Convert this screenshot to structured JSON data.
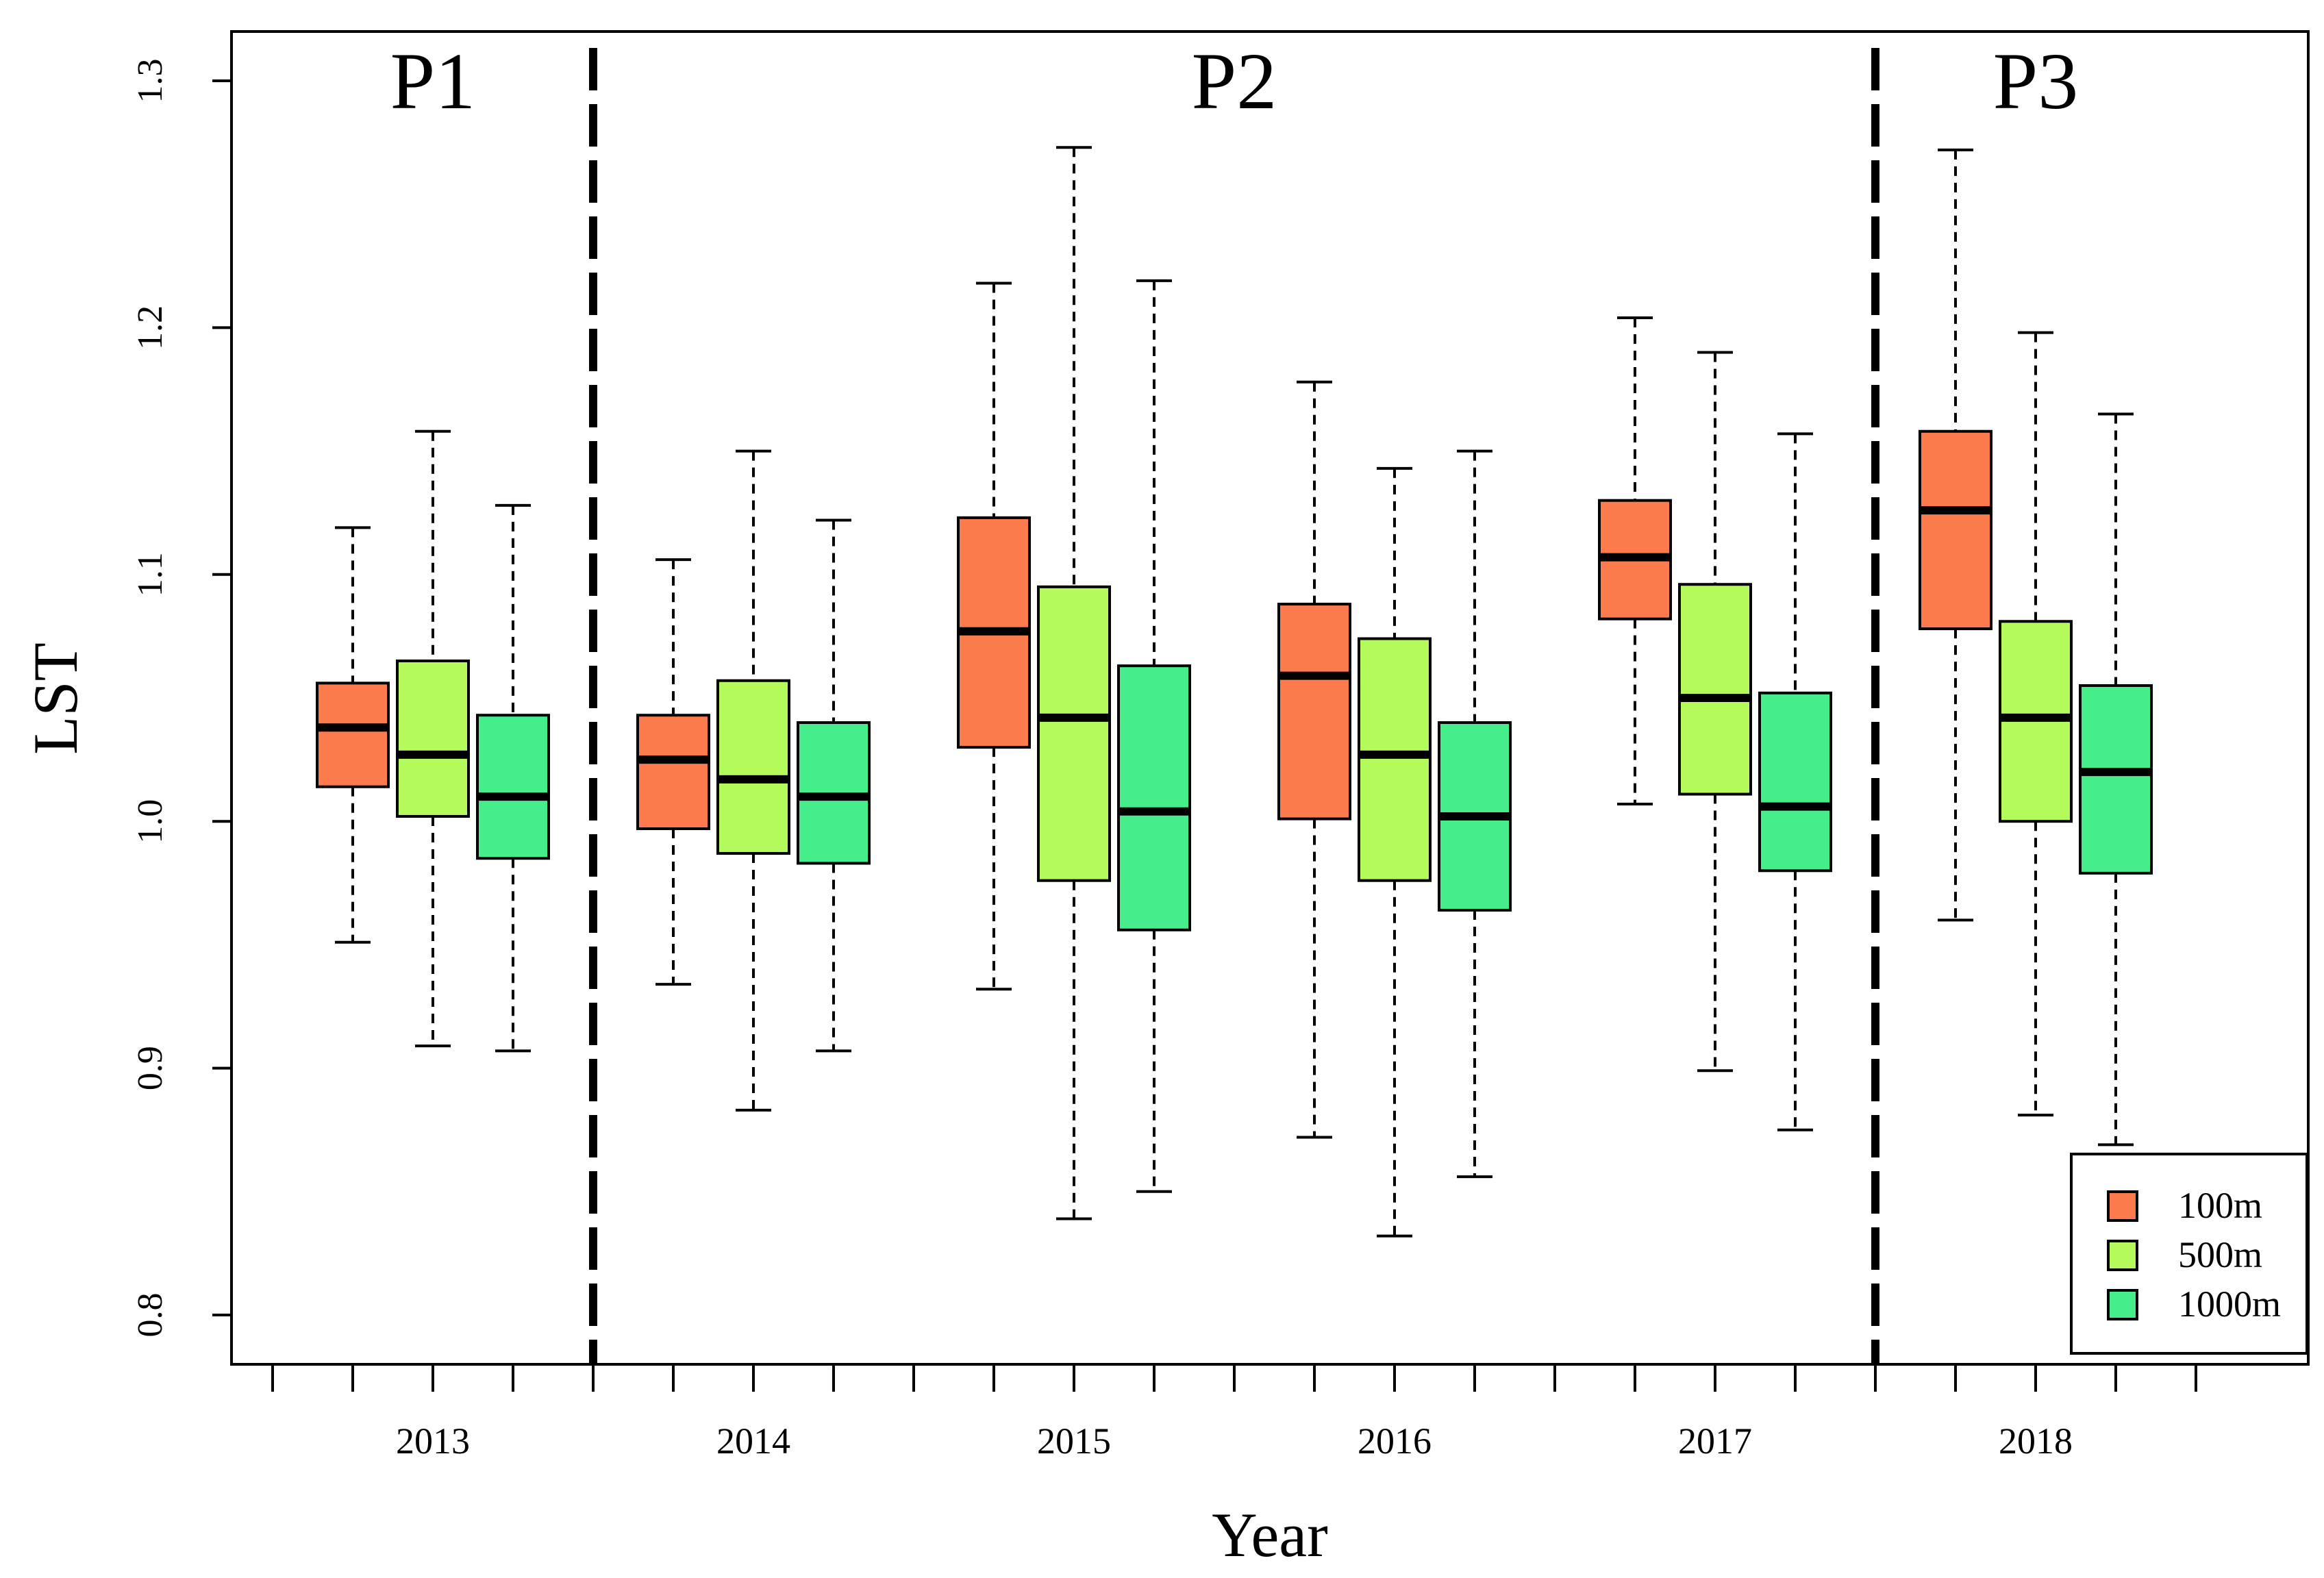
{
  "chart_data": {
    "type": "boxplot",
    "title": "",
    "xlabel": "Year",
    "ylabel": "LST",
    "ylim": [
      0.78,
      1.32
    ],
    "yticks": [
      0.8,
      0.9,
      1.0,
      1.1,
      1.2,
      1.3
    ],
    "ytick_labels": [
      "0.8",
      "0.9",
      "1.0",
      "1.1",
      "1.2",
      "1.3"
    ],
    "categories": [
      "2013",
      "2014",
      "2015",
      "2016",
      "2017",
      "2018"
    ],
    "series": [
      {
        "name": "100m",
        "color": "#FB7B4D",
        "boxes": [
          {
            "year": "2013",
            "lower_whisker": 0.951,
            "q1": 1.014,
            "median": 1.038,
            "q3": 1.056,
            "upper_whisker": 1.119
          },
          {
            "year": "2014",
            "lower_whisker": 0.934,
            "q1": 0.997,
            "median": 1.025,
            "q3": 1.043,
            "upper_whisker": 1.106
          },
          {
            "year": "2015",
            "lower_whisker": 0.932,
            "q1": 1.03,
            "median": 1.077,
            "q3": 1.123,
            "upper_whisker": 1.218
          },
          {
            "year": "2016",
            "lower_whisker": 0.872,
            "q1": 1.001,
            "median": 1.059,
            "q3": 1.088,
            "upper_whisker": 1.178
          },
          {
            "year": "2017",
            "lower_whisker": 1.007,
            "q1": 1.082,
            "median": 1.107,
            "q3": 1.13,
            "upper_whisker": 1.204
          },
          {
            "year": "2018",
            "lower_whisker": 0.96,
            "q1": 1.078,
            "median": 1.126,
            "q3": 1.158,
            "upper_whisker": 1.272
          }
        ]
      },
      {
        "name": "500m",
        "color": "#B4FA5A",
        "boxes": [
          {
            "year": "2013",
            "lower_whisker": 0.909,
            "q1": 1.002,
            "median": 1.027,
            "q3": 1.065,
            "upper_whisker": 1.158
          },
          {
            "year": "2014",
            "lower_whisker": 0.883,
            "q1": 0.987,
            "median": 1.017,
            "q3": 1.057,
            "upper_whisker": 1.15
          },
          {
            "year": "2015",
            "lower_whisker": 0.839,
            "q1": 0.976,
            "median": 1.042,
            "q3": 1.095,
            "upper_whisker": 1.273
          },
          {
            "year": "2016",
            "lower_whisker": 0.832,
            "q1": 0.976,
            "median": 1.027,
            "q3": 1.074,
            "upper_whisker": 1.143
          },
          {
            "year": "2017",
            "lower_whisker": 0.899,
            "q1": 1.011,
            "median": 1.05,
            "q3": 1.096,
            "upper_whisker": 1.19
          },
          {
            "year": "2018",
            "lower_whisker": 0.881,
            "q1": 1.0,
            "median": 1.042,
            "q3": 1.081,
            "upper_whisker": 1.198
          }
        ]
      },
      {
        "name": "1000m",
        "color": "#45EE8A",
        "boxes": [
          {
            "year": "2013",
            "lower_whisker": 0.907,
            "q1": 0.985,
            "median": 1.01,
            "q3": 1.043,
            "upper_whisker": 1.128
          },
          {
            "year": "2014",
            "lower_whisker": 0.907,
            "q1": 0.983,
            "median": 1.01,
            "q3": 1.04,
            "upper_whisker": 1.122
          },
          {
            "year": "2015",
            "lower_whisker": 0.85,
            "q1": 0.956,
            "median": 1.004,
            "q3": 1.063,
            "upper_whisker": 1.219
          },
          {
            "year": "2016",
            "lower_whisker": 0.856,
            "q1": 0.964,
            "median": 1.002,
            "q3": 1.04,
            "upper_whisker": 1.15
          },
          {
            "year": "2017",
            "lower_whisker": 0.875,
            "q1": 0.98,
            "median": 1.006,
            "q3": 1.052,
            "upper_whisker": 1.157
          },
          {
            "year": "2018",
            "lower_whisker": 0.869,
            "q1": 0.979,
            "median": 1.02,
            "q3": 1.055,
            "upper_whisker": 1.165
          }
        ]
      }
    ],
    "periods": [
      {
        "label": "P1",
        "years": [
          "2013"
        ]
      },
      {
        "label": "P2",
        "years": [
          "2014",
          "2015",
          "2016",
          "2017"
        ]
      },
      {
        "label": "P3",
        "years": [
          "2018"
        ]
      }
    ],
    "period_divider_after_years": [
      "2013",
      "2017"
    ],
    "legend": {
      "position": "bottom-right",
      "entries": [
        "100m",
        "500m",
        "1000m"
      ]
    },
    "grid": false
  }
}
